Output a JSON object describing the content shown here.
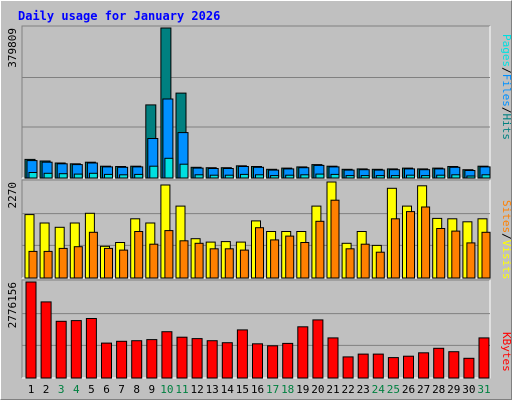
{
  "title": "Daily usage for January 2026",
  "colors": {
    "pages": "#00e0e0",
    "files": "#0090ff",
    "hits": "#008080",
    "visits": "#ffff00",
    "sites": "#ff8000",
    "kbytes": "#ff0000",
    "weekday": "#000000",
    "weekend": "#008040"
  },
  "legend": {
    "top": {
      "pages": "Pages",
      "files": "Files",
      "hits": "Hits",
      "sep": "/"
    },
    "mid": {
      "sites": "Sites",
      "visits": "Visits",
      "sep": "/"
    },
    "bottom": {
      "kbytes": "KBytes"
    }
  },
  "chart_data": {
    "type": "bar",
    "days": [
      "1",
      "2",
      "3",
      "4",
      "5",
      "6",
      "7",
      "8",
      "9",
      "10",
      "11",
      "12",
      "13",
      "14",
      "15",
      "16",
      "17",
      "18",
      "19",
      "20",
      "21",
      "22",
      "23",
      "24",
      "25",
      "26",
      "27",
      "28",
      "29",
      "30",
      "31"
    ],
    "weekend_days": [
      "3",
      "4",
      "10",
      "11",
      "17",
      "18",
      "24",
      "25",
      "31"
    ],
    "panels": [
      {
        "id": "hits",
        "max_label": "379809",
        "ymax": 379809,
        "series": [
          {
            "name": "Hits",
            "values": [
              47000,
              43000,
              38000,
              36000,
              40000,
              30000,
              29000,
              30000,
              185000,
              379809,
              215000,
              27000,
              26000,
              26000,
              31000,
              29000,
              22000,
              25000,
              28000,
              34000,
              30000,
              22000,
              23000,
              22000,
              23000,
              25000,
              23000,
              25000,
              29000,
              21000,
              30000
            ]
          },
          {
            "name": "Files",
            "values": [
              44000,
              40000,
              36000,
              34000,
              38000,
              28000,
              27000,
              28000,
              100000,
              200000,
              115000,
              25000,
              24000,
              24000,
              29000,
              27000,
              20000,
              23000,
              26000,
              32000,
              28000,
              20000,
              21000,
              20000,
              21000,
              23000,
              21000,
              23000,
              27000,
              19000,
              28000
            ]
          },
          {
            "name": "Pages",
            "values": [
              14000,
              12000,
              11000,
              10000,
              12000,
              9000,
              8000,
              9000,
              30000,
              50000,
              35000,
              8000,
              7000,
              7000,
              9000,
              8000,
              6000,
              7000,
              8000,
              10000,
              9000,
              6000,
              6000,
              6000,
              6000,
              7000,
              6000,
              7000,
              8000,
              5000,
              8000
            ]
          }
        ]
      },
      {
        "id": "visits",
        "max_label": "2270",
        "ymax": 2270,
        "series": [
          {
            "name": "Visits",
            "values": [
              1500,
              1300,
              1200,
              1300,
              1530,
              750,
              840,
              1400,
              1300,
              2200,
              1700,
              930,
              850,
              860,
              850,
              1350,
              1100,
              1100,
              1100,
              1700,
              2270,
              820,
              1100,
              770,
              2120,
              1700,
              2180,
              1410,
              1400,
              1330,
              1400
            ]
          },
          {
            "name": "Sites",
            "values": [
              630,
              630,
              700,
              740,
              1080,
              700,
              660,
              1100,
              800,
              1120,
              880,
              820,
              690,
              690,
              660,
              1190,
              900,
              990,
              840,
              1340,
              1840,
              690,
              800,
              610,
              1400,
              1570,
              1680,
              1170,
              1110,
              830,
              1080
            ]
          }
        ]
      },
      {
        "id": "kbytes",
        "max_label": "2776156",
        "ymax": 2776156,
        "series": [
          {
            "name": "KBytes",
            "values": [
              2776156,
              2200000,
              1640000,
              1660000,
              1720000,
              1010000,
              1060000,
              1080000,
              1110000,
              1340000,
              1180000,
              1140000,
              1080000,
              1020000,
              1390000,
              990000,
              930000,
              1000000,
              1480000,
              1680000,
              1160000,
              610000,
              690000,
              690000,
              590000,
              630000,
              730000,
              860000,
              760000,
              570000,
              1160000
            ]
          }
        ]
      }
    ]
  }
}
